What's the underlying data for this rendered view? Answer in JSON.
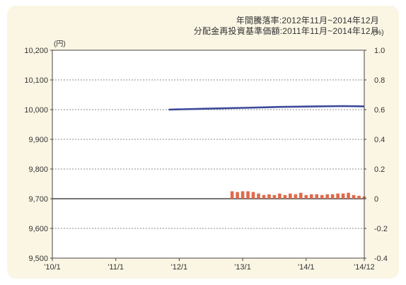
{
  "header": {
    "line1": "年間騰落率:2012年11月~2014年12月",
    "line2": "分配金再投資基準価額:2011年11月~2014年12月"
  },
  "chart_data": {
    "type": "bar+line",
    "x_tick_labels": [
      "'10/1",
      "'11/1",
      "'12/1",
      "'13/1",
      "'14/1",
      "'14/12"
    ],
    "left_axis": {
      "unit": "(円)",
      "ylim": [
        9500,
        10200
      ],
      "ticks": [
        9500,
        9600,
        9700,
        9800,
        9900,
        10000,
        10100,
        10200
      ],
      "tick_labels": [
        "9,500",
        "9,600",
        "9,700",
        "9,800",
        "9,900",
        "10,000",
        "10,100",
        "10,200"
      ]
    },
    "right_axis": {
      "unit": "(%)",
      "ylim": [
        -0.4,
        1.0
      ],
      "ticks": [
        -0.4,
        -0.2,
        0,
        0.2,
        0.4,
        0.6,
        0.8,
        1.0
      ],
      "tick_labels": [
        "-0.4",
        "-0.2",
        "0",
        "0.2",
        "0.4",
        "0.6",
        "0.8",
        "1.0"
      ]
    },
    "time_axis": {
      "start": "2010-01",
      "end": "2014-12"
    },
    "line_series": {
      "axis": "left",
      "color": "#3b4a9a",
      "points": [
        {
          "x": "2011-11",
          "y": 10000
        },
        {
          "x": "2012-06",
          "y": 10003
        },
        {
          "x": "2013-01",
          "y": 10006
        },
        {
          "x": "2013-08",
          "y": 10009
        },
        {
          "x": "2014-03",
          "y": 10011
        },
        {
          "x": "2014-08",
          "y": 10012
        },
        {
          "x": "2014-12",
          "y": 10011
        }
      ]
    },
    "bar_series": {
      "axis": "right",
      "color": "#e06a4b",
      "x": [
        "2012-11",
        "2012-12",
        "2013-01",
        "2013-02",
        "2013-03",
        "2013-04",
        "2013-05",
        "2013-06",
        "2013-07",
        "2013-08",
        "2013-09",
        "2013-10",
        "2013-11",
        "2013-12",
        "2014-01",
        "2014-02",
        "2014-03",
        "2014-04",
        "2014-05",
        "2014-06",
        "2014-07",
        "2014-08",
        "2014-09",
        "2014-10",
        "2014-11",
        "2014-12"
      ],
      "values": [
        0.05,
        0.045,
        0.05,
        0.05,
        0.045,
        0.035,
        0.025,
        0.03,
        0.025,
        0.035,
        0.025,
        0.035,
        0.03,
        0.04,
        0.025,
        0.03,
        0.03,
        0.025,
        0.03,
        0.03,
        0.035,
        0.035,
        0.04,
        0.025,
        0.02,
        0.015
      ]
    },
    "grid": "horizontal-dashed",
    "colors": {
      "panel_background": "#fbf6e4",
      "plot_background": "#ffffff",
      "grid": "#666666",
      "zero_line": "#222222",
      "frame": "#444444"
    }
  }
}
